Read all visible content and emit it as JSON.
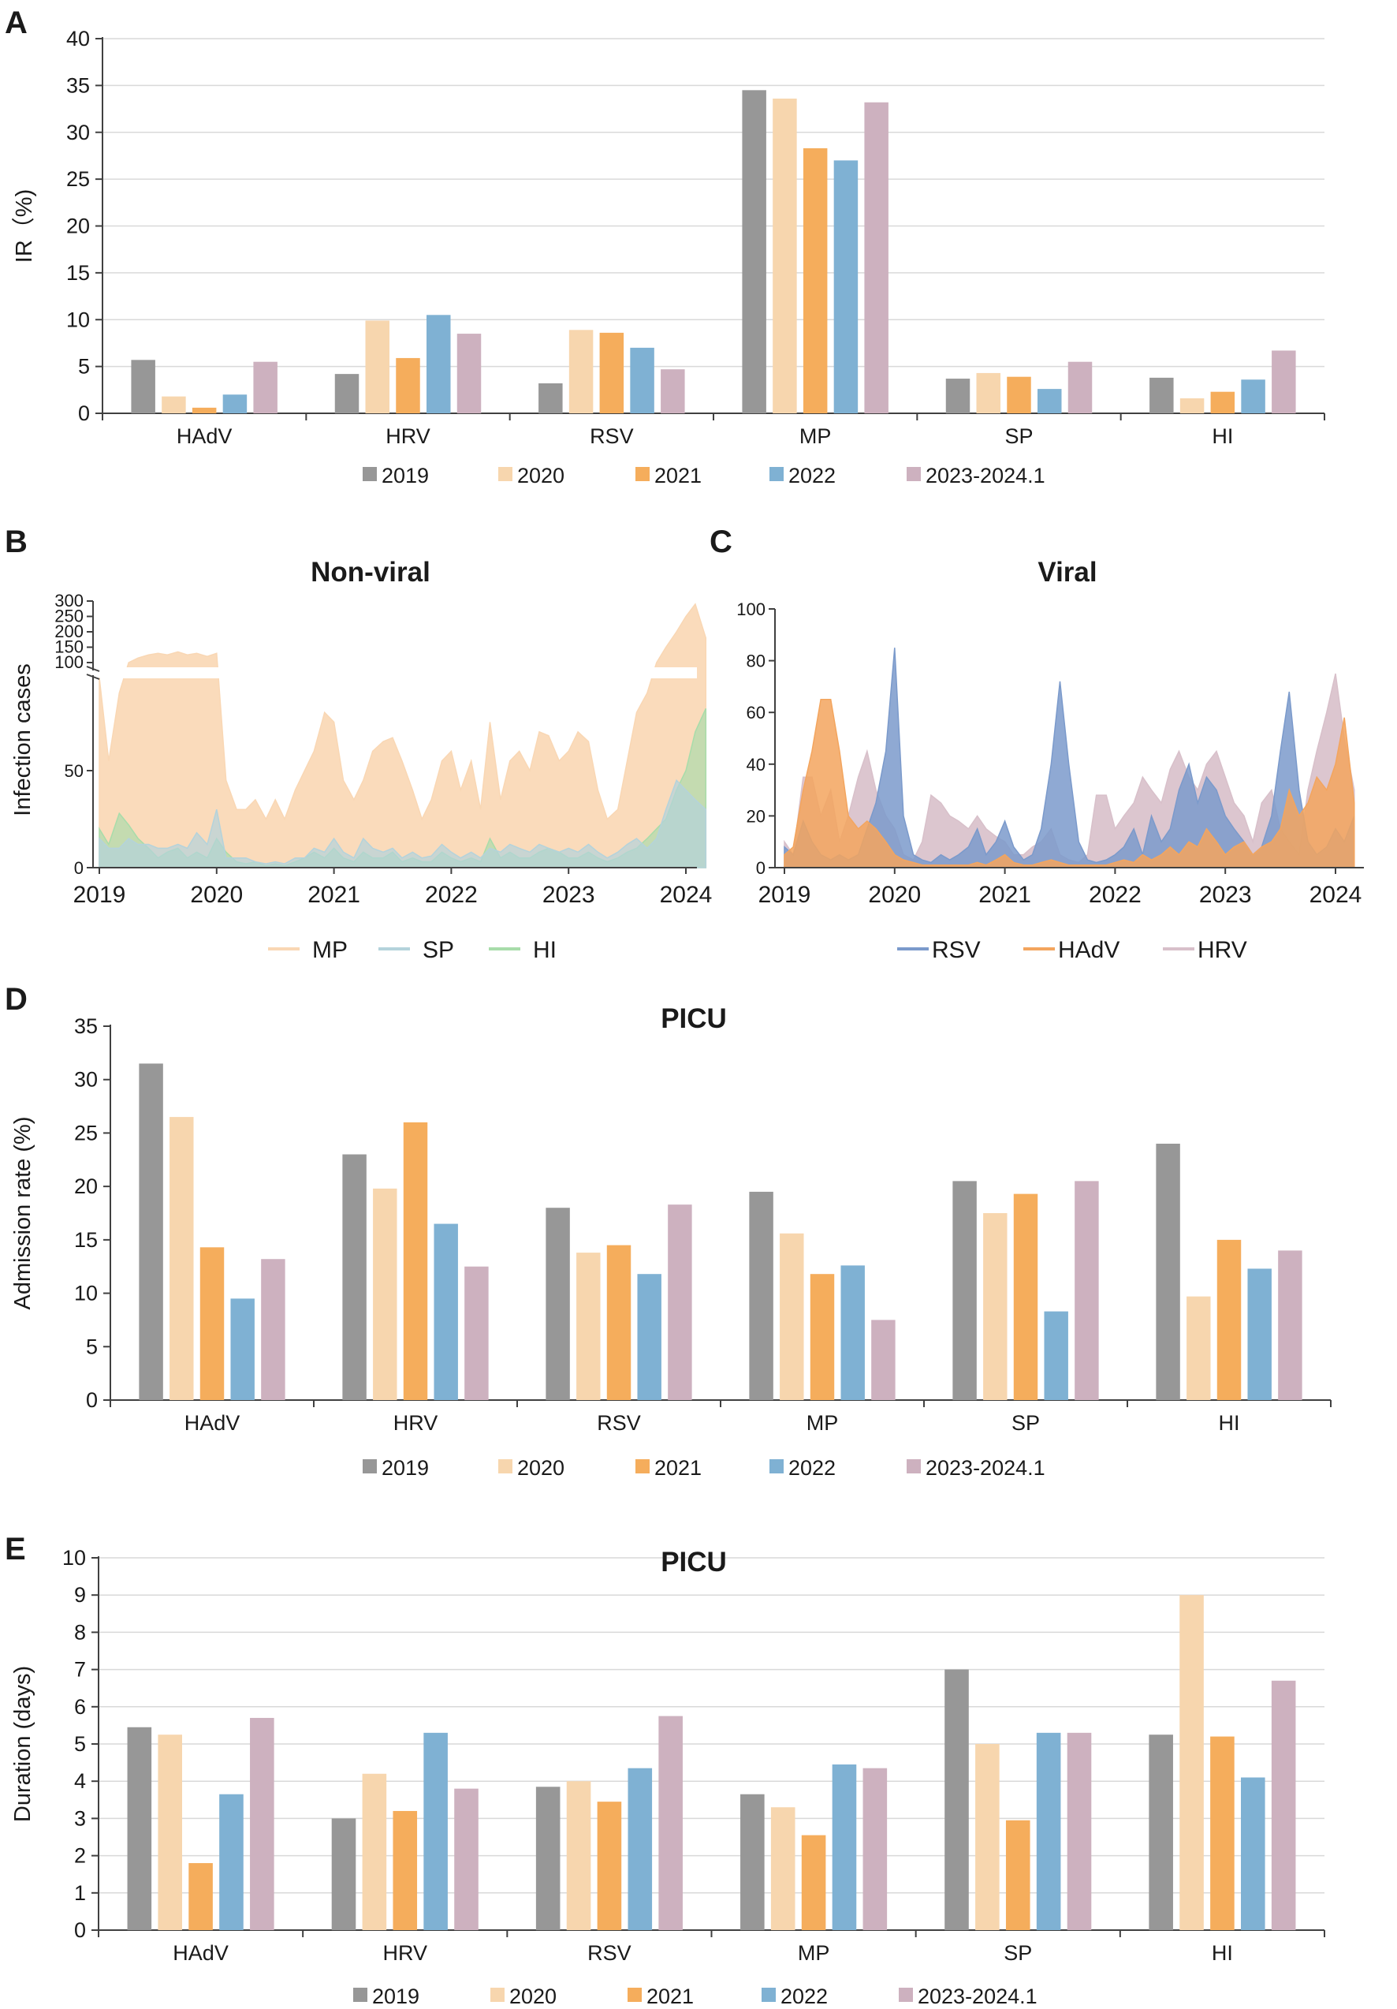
{
  "colors": {
    "y2019": "#979797",
    "y2020": "#f7d6ae",
    "y2021": "#f5ad5c",
    "y2022": "#7fb1d3",
    "y2023": "#cdb1bf",
    "mp_fill": "#f9d7b4",
    "sp_fill": "#b4d3db",
    "hi_fill": "#a8dcaa",
    "rsv_fill": "#7b9acb",
    "hadv_fill": "#f3a55e",
    "hrv_fill": "#d8c0ca",
    "grid": "#d9d9d9",
    "axis": "#404040"
  },
  "chart_data": [
    {
      "panel": "A",
      "type": "bar",
      "title": "",
      "ylabel": "IR（%)",
      "xlabel": "",
      "ylim": [
        0,
        40
      ],
      "yticks": [
        "0",
        "5",
        "10",
        "15",
        "20",
        "25",
        "30",
        "35",
        "40"
      ],
      "grid": true,
      "legend_position": "bottom",
      "categories": [
        "HAdV",
        "HRV",
        "RSV",
        "MP",
        "SP",
        "HI"
      ],
      "series": [
        {
          "name": "2019",
          "values": [
            5.7,
            4.2,
            3.2,
            34.5,
            3.7,
            3.8
          ]
        },
        {
          "name": "2020",
          "values": [
            1.8,
            9.9,
            8.9,
            33.6,
            4.3,
            1.6
          ]
        },
        {
          "name": "2021",
          "values": [
            0.6,
            5.9,
            8.6,
            28.3,
            3.9,
            2.3
          ]
        },
        {
          "name": "2022",
          "values": [
            2.0,
            10.5,
            7.0,
            27.0,
            2.6,
            3.6
          ]
        },
        {
          "name": "2023-2024.1",
          "values": [
            5.5,
            8.5,
            4.7,
            33.2,
            5.5,
            6.7
          ]
        }
      ]
    },
    {
      "panel": "B",
      "type": "area",
      "title": "Non-viral",
      "ylabel": "Infection cases",
      "xlabel": "",
      "broken_axis": true,
      "yticks_lower": [
        "0",
        "50"
      ],
      "yticks_upper": [
        "100",
        "150",
        "200",
        "250",
        "300"
      ],
      "xticks": [
        "2019",
        "2020",
        "2021",
        "2022",
        "2023",
        "2024"
      ],
      "x": [
        2019.0,
        2019.08,
        2019.17,
        2019.25,
        2019.33,
        2019.42,
        2019.5,
        2019.58,
        2019.67,
        2019.75,
        2019.83,
        2019.92,
        2020.0,
        2020.08,
        2020.17,
        2020.25,
        2020.33,
        2020.42,
        2020.5,
        2020.58,
        2020.67,
        2020.75,
        2020.83,
        2020.92,
        2021.0,
        2021.08,
        2021.17,
        2021.25,
        2021.33,
        2021.42,
        2021.5,
        2021.58,
        2021.67,
        2021.75,
        2021.83,
        2021.92,
        2022.0,
        2022.08,
        2022.17,
        2022.25,
        2022.33,
        2022.42,
        2022.5,
        2022.58,
        2022.67,
        2022.75,
        2022.83,
        2022.92,
        2023.0,
        2023.08,
        2023.17,
        2023.25,
        2023.33,
        2023.42,
        2023.5,
        2023.58,
        2023.67,
        2023.75,
        2023.83,
        2023.92,
        2024.0,
        2024.08,
        2024.17
      ],
      "series": [
        {
          "name": "MP",
          "values": [
            95,
            55,
            90,
            100,
            115,
            125,
            130,
            125,
            135,
            125,
            130,
            120,
            130,
            45,
            30,
            30,
            35,
            25,
            35,
            25,
            40,
            50,
            60,
            80,
            75,
            45,
            35,
            45,
            60,
            65,
            67,
            55,
            40,
            25,
            35,
            55,
            60,
            40,
            55,
            30,
            75,
            35,
            55,
            60,
            50,
            70,
            68,
            55,
            60,
            70,
            65,
            40,
            25,
            30,
            55,
            80,
            90,
            100,
            150,
            200,
            250,
            290,
            180
          ]
        },
        {
          "name": "SP",
          "values": [
            15,
            10,
            10,
            15,
            12,
            12,
            10,
            10,
            12,
            10,
            18,
            12,
            30,
            5,
            5,
            5,
            3,
            2,
            3,
            2,
            5,
            5,
            10,
            8,
            15,
            8,
            5,
            15,
            10,
            8,
            10,
            5,
            8,
            5,
            6,
            12,
            8,
            5,
            8,
            5,
            10,
            8,
            12,
            10,
            8,
            12,
            10,
            8,
            10,
            8,
            12,
            8,
            5,
            8,
            12,
            15,
            10,
            15,
            30,
            45,
            40,
            35,
            30
          ]
        },
        {
          "name": "HI",
          "values": [
            20,
            12,
            28,
            22,
            15,
            10,
            5,
            8,
            10,
            5,
            8,
            5,
            15,
            8,
            3,
            2,
            3,
            1,
            2,
            1,
            3,
            5,
            8,
            5,
            10,
            5,
            3,
            8,
            5,
            5,
            8,
            3,
            5,
            3,
            3,
            8,
            5,
            3,
            5,
            3,
            15,
            5,
            8,
            5,
            5,
            8,
            10,
            8,
            5,
            5,
            8,
            5,
            3,
            5,
            8,
            10,
            15,
            20,
            25,
            40,
            50,
            70,
            82
          ]
        }
      ]
    },
    {
      "panel": "C",
      "type": "area",
      "title": "Viral",
      "ylabel": "",
      "xlabel": "",
      "ylim": [
        0,
        100
      ],
      "yticks": [
        "0",
        "20",
        "40",
        "60",
        "80",
        "100"
      ],
      "xticks": [
        "2019",
        "2020",
        "2021",
        "2022",
        "2023",
        "2024"
      ],
      "x": [
        2019.0,
        2019.08,
        2019.17,
        2019.25,
        2019.33,
        2019.42,
        2019.5,
        2019.58,
        2019.67,
        2019.75,
        2019.83,
        2019.92,
        2020.0,
        2020.08,
        2020.17,
        2020.25,
        2020.33,
        2020.42,
        2020.5,
        2020.58,
        2020.67,
        2020.75,
        2020.83,
        2020.92,
        2021.0,
        2021.08,
        2021.17,
        2021.25,
        2021.33,
        2021.42,
        2021.5,
        2021.58,
        2021.67,
        2021.75,
        2021.83,
        2021.92,
        2022.0,
        2022.08,
        2022.17,
        2022.25,
        2022.33,
        2022.42,
        2022.5,
        2022.58,
        2022.67,
        2022.75,
        2022.83,
        2022.92,
        2023.0,
        2023.08,
        2023.17,
        2023.25,
        2023.33,
        2023.42,
        2023.5,
        2023.58,
        2023.67,
        2023.75,
        2023.83,
        2023.92,
        2024.0,
        2024.08,
        2024.17
      ],
      "series": [
        {
          "name": "RSV",
          "values": [
            8,
            5,
            18,
            10,
            5,
            3,
            5,
            3,
            5,
            15,
            25,
            45,
            85,
            20,
            5,
            3,
            2,
            5,
            3,
            5,
            8,
            15,
            5,
            10,
            18,
            8,
            3,
            5,
            15,
            40,
            72,
            40,
            10,
            3,
            2,
            3,
            5,
            8,
            15,
            5,
            20,
            10,
            15,
            30,
            40,
            25,
            35,
            30,
            20,
            15,
            10,
            5,
            8,
            20,
            45,
            68,
            30,
            10,
            5,
            8,
            15,
            10,
            20
          ]
        },
        {
          "name": "HAdV",
          "values": [
            5,
            8,
            30,
            45,
            65,
            65,
            45,
            20,
            15,
            18,
            15,
            10,
            5,
            3,
            2,
            1,
            1,
            1,
            1,
            1,
            1,
            2,
            1,
            3,
            5,
            2,
            1,
            1,
            2,
            3,
            2,
            1,
            1,
            1,
            1,
            1,
            2,
            3,
            2,
            5,
            3,
            5,
            8,
            5,
            10,
            8,
            15,
            10,
            5,
            8,
            10,
            5,
            8,
            10,
            15,
            30,
            20,
            25,
            35,
            30,
            40,
            58,
            25
          ]
        },
        {
          "name": "HRV",
          "values": [
            10,
            5,
            35,
            35,
            20,
            30,
            10,
            20,
            35,
            45,
            30,
            20,
            15,
            5,
            3,
            10,
            28,
            25,
            20,
            18,
            15,
            20,
            15,
            12,
            10,
            5,
            5,
            8,
            10,
            15,
            5,
            3,
            2,
            5,
            28,
            28,
            15,
            20,
            25,
            35,
            30,
            25,
            38,
            45,
            35,
            30,
            40,
            45,
            35,
            25,
            20,
            10,
            25,
            30,
            15,
            10,
            5,
            30,
            45,
            60,
            75,
            50,
            30
          ]
        }
      ]
    },
    {
      "panel": "D",
      "type": "bar",
      "title": "PICU",
      "ylabel": "Admission rate (%)",
      "xlabel": "",
      "ylim": [
        0,
        35
      ],
      "yticks": [
        "0",
        "5",
        "10",
        "15",
        "20",
        "25",
        "30",
        "35"
      ],
      "grid": false,
      "legend_position": "bottom",
      "categories": [
        "HAdV",
        "HRV",
        "RSV",
        "MP",
        "SP",
        "HI"
      ],
      "series": [
        {
          "name": "2019",
          "values": [
            31.5,
            23.0,
            18.0,
            19.5,
            20.5,
            24.0
          ]
        },
        {
          "name": "2020",
          "values": [
            26.5,
            19.8,
            13.8,
            15.6,
            17.5,
            9.7
          ]
        },
        {
          "name": "2021",
          "values": [
            14.3,
            26.0,
            14.5,
            11.8,
            19.3,
            15.0
          ]
        },
        {
          "name": "2022",
          "values": [
            9.5,
            16.5,
            11.8,
            12.6,
            8.3,
            12.3
          ]
        },
        {
          "name": "2023-2024.1",
          "values": [
            13.2,
            12.5,
            18.3,
            7.5,
            20.5,
            14.0
          ]
        }
      ]
    },
    {
      "panel": "E",
      "type": "bar",
      "title": "PICU",
      "ylabel": "Duration (days)",
      "xlabel": "",
      "ylim": [
        0,
        10
      ],
      "yticks": [
        "0",
        "1",
        "2",
        "3",
        "4",
        "5",
        "6",
        "7",
        "8",
        "9",
        "10"
      ],
      "grid": true,
      "legend_position": "bottom",
      "categories": [
        "HAdV",
        "HRV",
        "RSV",
        "MP",
        "SP",
        "HI"
      ],
      "series": [
        {
          "name": "2019",
          "values": [
            5.45,
            3.0,
            3.85,
            3.65,
            7.0,
            5.25
          ]
        },
        {
          "name": "2020",
          "values": [
            5.25,
            4.2,
            4.0,
            3.3,
            5.0,
            9.0
          ]
        },
        {
          "name": "2021",
          "values": [
            1.8,
            3.2,
            3.45,
            2.55,
            2.95,
            5.2
          ]
        },
        {
          "name": "2022",
          "values": [
            3.65,
            5.3,
            4.35,
            4.45,
            5.3,
            4.1
          ]
        },
        {
          "name": "2023-2024.1",
          "values": [
            5.7,
            3.8,
            5.75,
            4.35,
            5.3,
            6.7
          ]
        }
      ]
    }
  ]
}
